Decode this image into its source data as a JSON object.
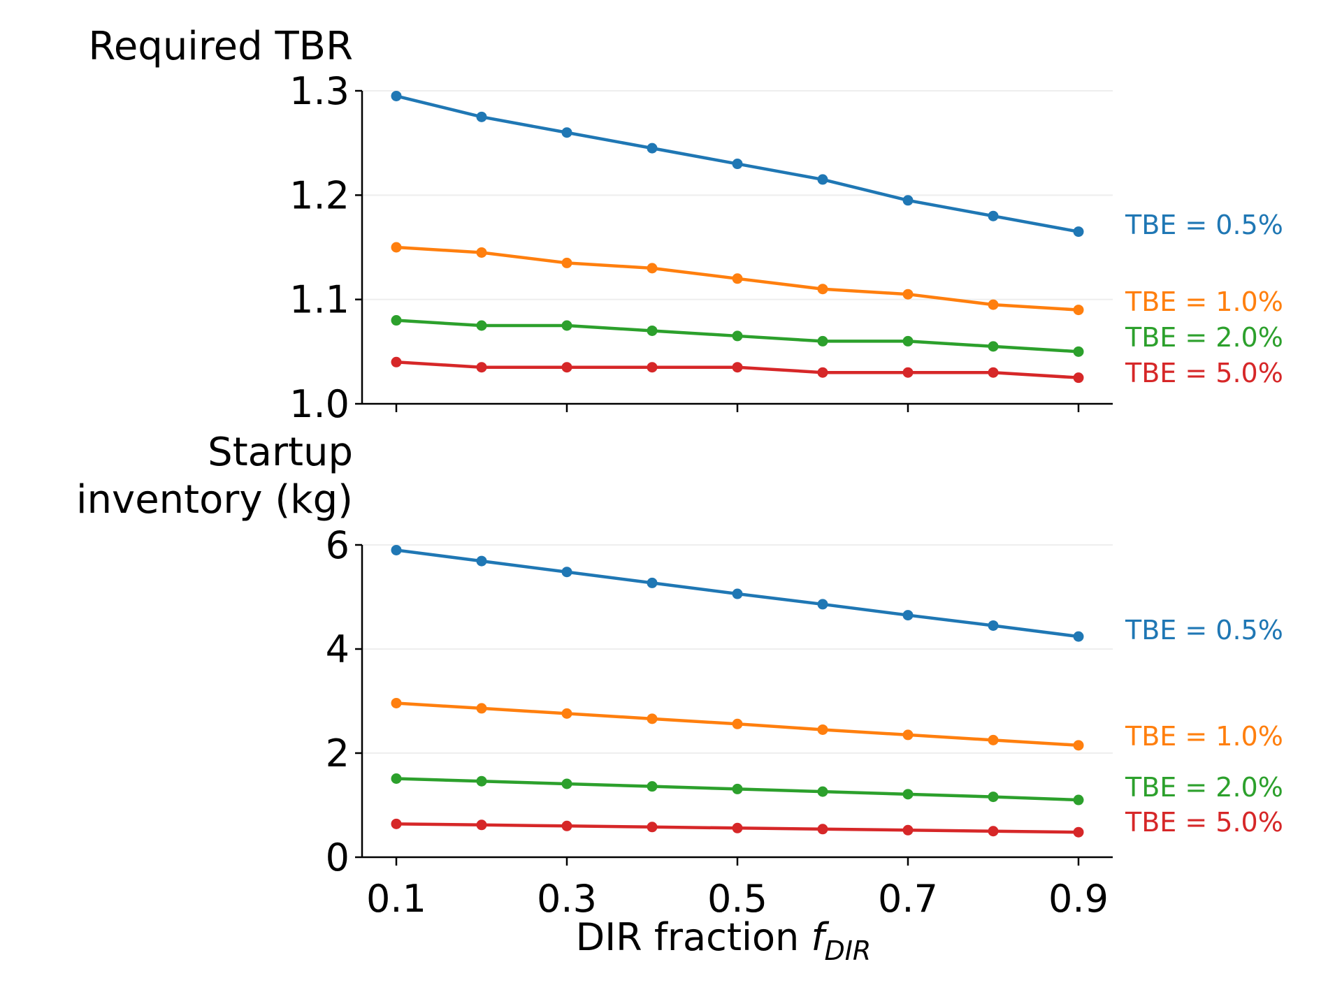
{
  "chart_data": [
    {
      "type": "line",
      "title": "Required TBR",
      "x": [
        0.1,
        0.2,
        0.3,
        0.4,
        0.5,
        0.6,
        0.7,
        0.8,
        0.9
      ],
      "ylim": [
        1.0,
        1.3
      ],
      "yticks": [
        "1.0",
        "1.1",
        "1.2",
        "1.3"
      ],
      "yticks_values": [
        1.0,
        1.1,
        1.2,
        1.3
      ],
      "grid": "horizontal",
      "legend": "inline labels at right of each series",
      "series": [
        {
          "name": "TBE = 0.5%",
          "color": "#1f77b4",
          "values": [
            1.295,
            1.275,
            1.26,
            1.245,
            1.23,
            1.215,
            1.195,
            1.18,
            1.165
          ]
        },
        {
          "name": "TBE = 1.0%",
          "color": "#ff7f0e",
          "values": [
            1.15,
            1.145,
            1.135,
            1.13,
            1.12,
            1.11,
            1.105,
            1.095,
            1.09
          ]
        },
        {
          "name": "TBE = 2.0%",
          "color": "#2ca02c",
          "values": [
            1.08,
            1.075,
            1.075,
            1.07,
            1.065,
            1.06,
            1.06,
            1.055,
            1.05
          ]
        },
        {
          "name": "TBE = 5.0%",
          "color": "#d62728",
          "values": [
            1.04,
            1.035,
            1.035,
            1.035,
            1.035,
            1.03,
            1.03,
            1.03,
            1.025
          ]
        }
      ]
    },
    {
      "type": "line",
      "title_lines": [
        "Startup",
        "inventory (kg)"
      ],
      "x": [
        0.1,
        0.2,
        0.3,
        0.4,
        0.5,
        0.6,
        0.7,
        0.8,
        0.9
      ],
      "ylim": [
        0,
        6
      ],
      "yticks": [
        "0",
        "2",
        "4",
        "6"
      ],
      "yticks_values": [
        0,
        2,
        4,
        6
      ],
      "xticks": [
        "0.1",
        "0.3",
        "0.5",
        "0.7",
        "0.9"
      ],
      "xticks_values": [
        0.1,
        0.3,
        0.5,
        0.7,
        0.9
      ],
      "xlabel": "DIR fraction",
      "xlabel_var": "f",
      "xlabel_sub": "DIR",
      "grid": "horizontal",
      "legend": "inline labels at right of each series",
      "series": [
        {
          "name": "TBE = 0.5%",
          "color": "#1f77b4",
          "values": [
            5.9,
            5.69,
            5.48,
            5.27,
            5.06,
            4.86,
            4.65,
            4.45,
            4.24
          ]
        },
        {
          "name": "TBE = 1.0%",
          "color": "#ff7f0e",
          "values": [
            2.96,
            2.86,
            2.76,
            2.66,
            2.56,
            2.45,
            2.35,
            2.25,
            2.15
          ]
        },
        {
          "name": "TBE = 2.0%",
          "color": "#2ca02c",
          "values": [
            1.51,
            1.46,
            1.41,
            1.36,
            1.31,
            1.26,
            1.21,
            1.16,
            1.1
          ]
        },
        {
          "name": "TBE = 5.0%",
          "color": "#d62728",
          "values": [
            0.64,
            0.62,
            0.6,
            0.58,
            0.56,
            0.54,
            0.52,
            0.5,
            0.48
          ]
        }
      ]
    }
  ]
}
